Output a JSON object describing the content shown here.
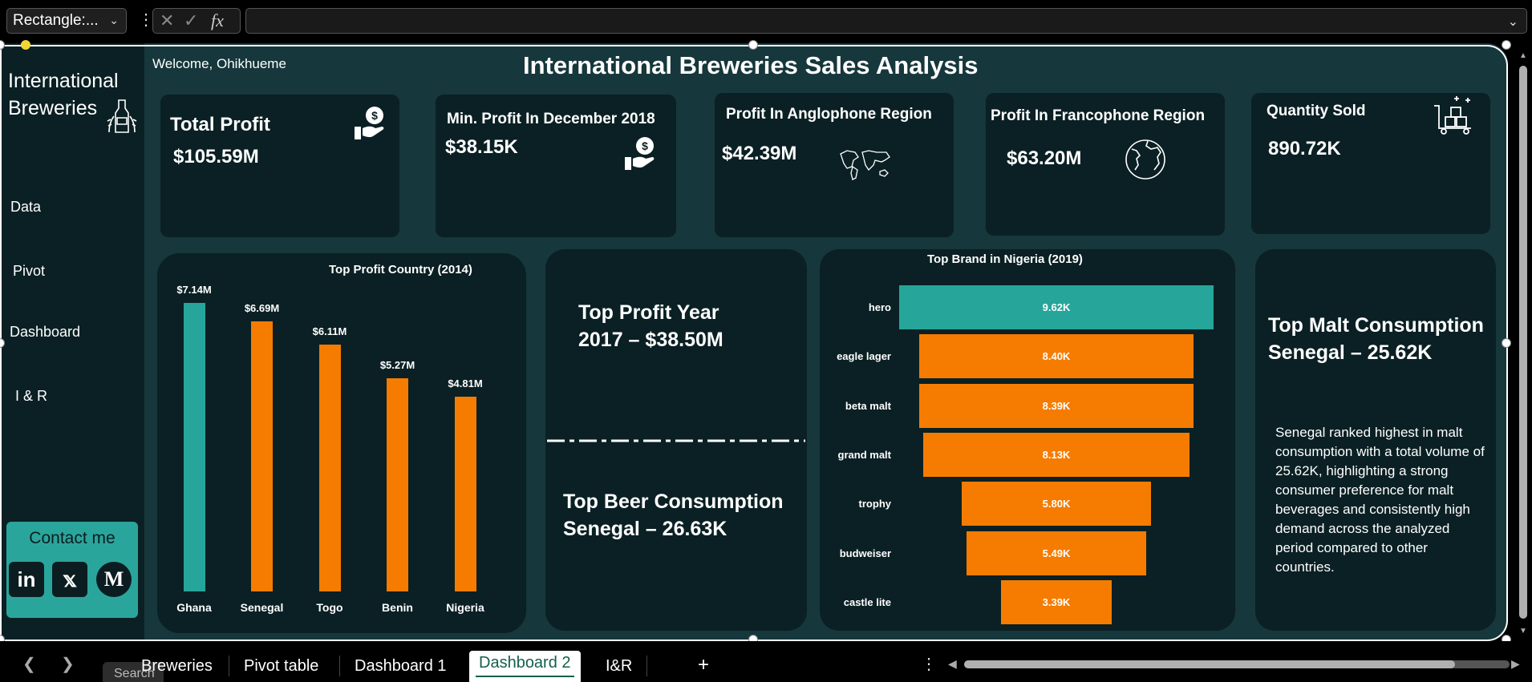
{
  "formula_bar": {
    "name_box": "Rectangle:...",
    "fx_label": "fx",
    "formula_value": ""
  },
  "sidebar": {
    "brand_line1": "International",
    "brand_line2": "Breweries",
    "nav": [
      "Data",
      "Pivot",
      "Dashboard",
      "I & R"
    ],
    "contact_title": "Contact me"
  },
  "header": {
    "welcome": "Welcome, Ohikhueme",
    "title": "International Breweries Sales Analysis"
  },
  "kpis": [
    {
      "title": "Total Profit",
      "value": "$105.59M",
      "icon": "money-hand-icon"
    },
    {
      "title": "Min. Profit In December 2018",
      "value": "$38.15K",
      "icon": "money-hand-icon"
    },
    {
      "title": "Profit In Anglophone Region",
      "value": "$42.39M",
      "icon": "world-map-icon"
    },
    {
      "title": "Profit In Francophone Region",
      "value": "$63.20M",
      "icon": "globe-icon"
    },
    {
      "title": "Quantity Sold",
      "value": "890.72K",
      "icon": "cart-boxes-icon"
    }
  ],
  "chart_data": [
    {
      "type": "bar",
      "title": "Top Profit Country (2014)",
      "categories": [
        "Ghana",
        "Senegal",
        "Togo",
        "Benin",
        "Nigeria"
      ],
      "values": [
        7.14,
        6.69,
        6.11,
        5.27,
        4.81
      ],
      "data_labels": [
        "$7.14M",
        "$6.69M",
        "$6.11M",
        "$5.27M",
        "$4.81M"
      ],
      "colors": [
        "#26a69a",
        "#f57c00",
        "#f57c00",
        "#f57c00",
        "#f57c00"
      ],
      "ylim": [
        0,
        7.14
      ],
      "grid": false
    },
    {
      "type": "bar",
      "title": "Top Brand in Nigeria (2019)",
      "categories": [
        "hero",
        "eagle lager",
        "beta malt",
        "grand malt",
        "trophy",
        "budweiser",
        "castle lite"
      ],
      "values": [
        9.62,
        8.4,
        8.39,
        8.13,
        5.8,
        5.49,
        3.39
      ],
      "data_labels": [
        "9.62K",
        "8.40K",
        "8.39K",
        "8.13K",
        "5.80K",
        "5.49K",
        "3.39K"
      ],
      "colors": [
        "#26a69a",
        "#f57c00",
        "#f57c00",
        "#f57c00",
        "#f57c00",
        "#f57c00",
        "#f57c00"
      ],
      "style": "funnel"
    }
  ],
  "highlights": {
    "profit_year_l1": "Top Profit Year",
    "profit_year_l2": "2017 – $38.50M",
    "beer_l1": "Top Beer Consumption",
    "beer_l2": "Senegal – 26.63K",
    "malt_l1": "Top Malt Consumption",
    "malt_l2": "Senegal – 25.62K",
    "malt_desc": "Senegal ranked highest in malt consumption with a total volume of 25.62K, highlighting a strong consumer preference for malt beverages and consistently high demand across the analyzed period compared to other countries."
  },
  "tabs": {
    "search_tip": "Search",
    "items": [
      "Breweries",
      "Pivot table",
      "Dashboard 1",
      "Dashboard 2",
      "I&R"
    ],
    "active": "Dashboard 2",
    "add": "+"
  },
  "colors": {
    "bg": "#16373b",
    "card": "#0b2024",
    "teal": "#26a69a",
    "orange": "#f57c00"
  }
}
